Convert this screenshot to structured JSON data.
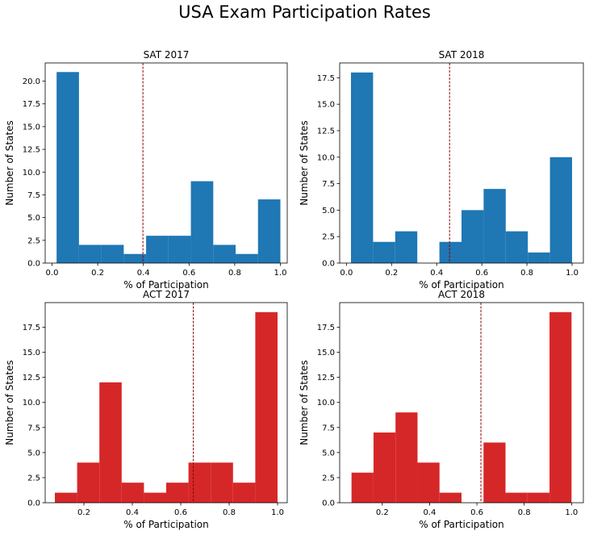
{
  "figure": {
    "title": "USA Exam Participation Rates"
  },
  "chart_data": [
    {
      "type": "bar",
      "title": "SAT 2017",
      "xlabel": "% of Participation",
      "ylabel": "Number of States",
      "xlim": [
        -0.03,
        1.03
      ],
      "ylim": [
        0,
        22
      ],
      "xticks": [
        0.0,
        0.2,
        0.4,
        0.6,
        0.8,
        1.0
      ],
      "yticks": [
        0.0,
        2.5,
        5.0,
        7.5,
        10.0,
        12.5,
        15.0,
        17.5,
        20.0
      ],
      "color": "#1f77b4",
      "bin_edges": [
        0.02,
        0.118,
        0.216,
        0.314,
        0.412,
        0.51,
        0.608,
        0.706,
        0.804,
        0.902,
        1.0
      ],
      "counts": [
        21,
        2,
        2,
        1,
        3,
        3,
        9,
        2,
        1,
        7
      ],
      "mean_line": 0.398,
      "mean_line_color": "#8b0000"
    },
    {
      "type": "bar",
      "title": "SAT 2018",
      "xlabel": "% of Participation",
      "ylabel": "Number of States",
      "xlim": [
        -0.03,
        1.05
      ],
      "ylim": [
        0,
        18.9
      ],
      "xticks": [
        0.0,
        0.2,
        0.4,
        0.6,
        0.8,
        1.0
      ],
      "yticks": [
        0.0,
        2.5,
        5.0,
        7.5,
        10.0,
        12.5,
        15.0,
        17.5
      ],
      "color": "#1f77b4",
      "bin_edges": [
        0.02,
        0.118,
        0.216,
        0.314,
        0.412,
        0.51,
        0.608,
        0.706,
        0.804,
        0.902,
        1.0
      ],
      "counts": [
        18,
        2,
        3,
        0,
        2,
        5,
        7,
        3,
        1,
        10
      ],
      "mean_line": 0.457,
      "mean_line_color": "#8b0000"
    },
    {
      "type": "bar",
      "title": "ACT 2017",
      "xlabel": "% of Participation",
      "ylabel": "Number of States",
      "xlim": [
        0.04,
        1.04
      ],
      "ylim": [
        0,
        19.95
      ],
      "xticks": [
        0.2,
        0.4,
        0.6,
        0.8,
        1.0
      ],
      "yticks": [
        0.0,
        2.5,
        5.0,
        7.5,
        10.0,
        12.5,
        15.0,
        17.5
      ],
      "color": "#d62728",
      "bin_edges": [
        0.08,
        0.172,
        0.264,
        0.356,
        0.448,
        0.54,
        0.632,
        0.724,
        0.816,
        0.908,
        1.0
      ],
      "counts": [
        1,
        4,
        12,
        2,
        1,
        2,
        4,
        4,
        2,
        19
      ],
      "mean_line": 0.652,
      "mean_line_color": "#8b0000"
    },
    {
      "type": "bar",
      "title": "ACT 2018",
      "xlabel": "% of Participation",
      "ylabel": "Number of States",
      "xlim": [
        0.02,
        1.05
      ],
      "ylim": [
        0,
        19.95
      ],
      "xticks": [
        0.2,
        0.4,
        0.6,
        0.8,
        1.0
      ],
      "yticks": [
        0.0,
        2.5,
        5.0,
        7.5,
        10.0,
        12.5,
        15.0,
        17.5
      ],
      "color": "#d62728",
      "bin_edges": [
        0.07,
        0.163,
        0.256,
        0.349,
        0.442,
        0.535,
        0.628,
        0.721,
        0.814,
        0.907,
        1.0
      ],
      "counts": [
        3,
        7,
        9,
        4,
        1,
        0,
        6,
        1,
        1,
        19
      ],
      "mean_line": 0.617,
      "mean_line_color": "#8b0000"
    }
  ]
}
